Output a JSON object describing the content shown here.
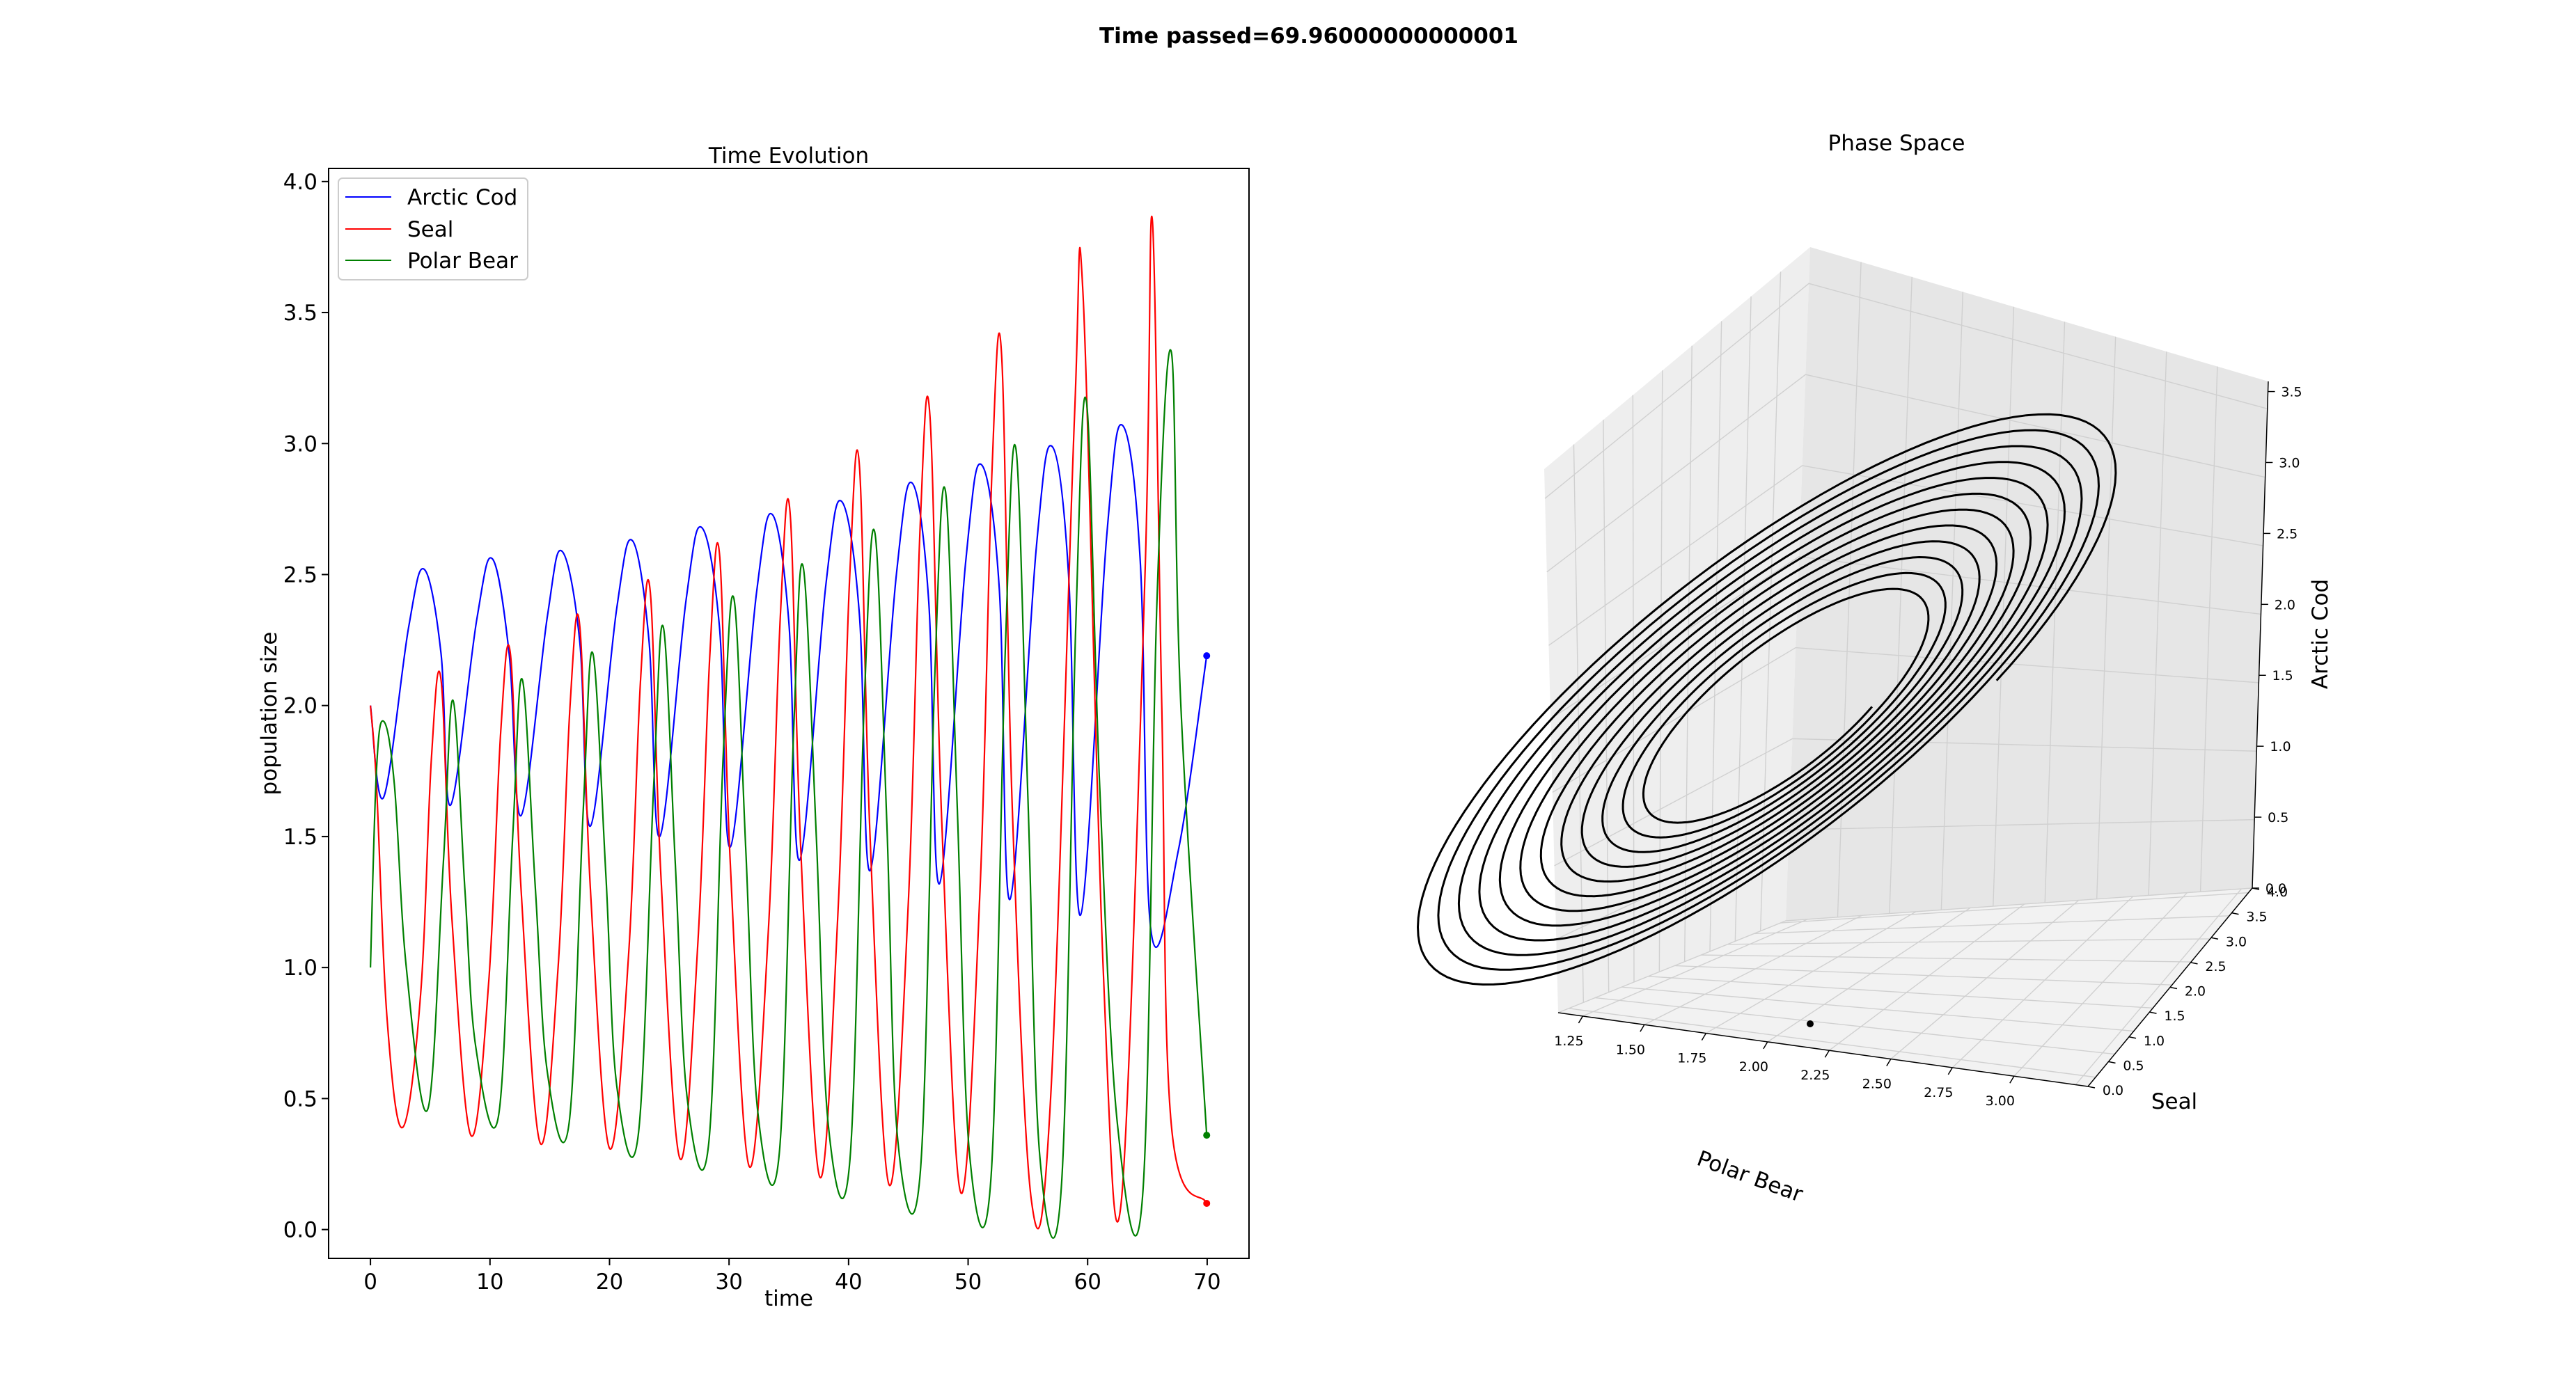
{
  "suptitle": "Time passed=69.96000000000001",
  "chart_data": [
    {
      "type": "line",
      "title": "Time Evolution",
      "xlabel": "time",
      "ylabel": "population size",
      "xlim": [
        -3.5,
        73.5
      ],
      "ylim": [
        -0.11,
        4.05
      ],
      "xticks": [
        0,
        10,
        20,
        30,
        40,
        50,
        60,
        70
      ],
      "xtick_labels": [
        "0",
        "10",
        "20",
        "30",
        "40",
        "50",
        "60",
        "70"
      ],
      "yticks": [
        0.0,
        0.5,
        1.0,
        1.5,
        2.0,
        2.5,
        3.0,
        3.5,
        4.0
      ],
      "ytick_labels": [
        "0.0",
        "0.5",
        "1.0",
        "1.5",
        "2.0",
        "2.5",
        "3.0",
        "3.5",
        "4.0"
      ],
      "grid": false,
      "legend_position": "upper-left",
      "end_markers": true,
      "series": [
        {
          "name": "Arctic Cod",
          "color": "#0000ff",
          "x": [
            0,
            1.1,
            3.2,
            4.5,
            5.9,
            6.7,
            8.9,
            10.2,
            11.6,
            12.6,
            14.8,
            16.0,
            17.5,
            18.4,
            20.6,
            21.9,
            23.3,
            24.2,
            26.4,
            27.7,
            29.2,
            30.1,
            32.3,
            33.6,
            35.0,
            35.9,
            38.1,
            39.4,
            40.9,
            41.8,
            44.0,
            45.3,
            46.7,
            47.6,
            49.8,
            51.1,
            52.6,
            53.5,
            55.7,
            57.0,
            58.4,
            59.4,
            61.6,
            62.9,
            64.4,
            65.3,
            67.6,
            69.96
          ],
          "y": [
            2.0,
            1.65,
            2.3,
            2.52,
            2.2,
            1.62,
            2.33,
            2.56,
            2.2,
            1.58,
            2.34,
            2.59,
            2.25,
            1.54,
            2.37,
            2.63,
            2.25,
            1.5,
            2.4,
            2.68,
            2.3,
            1.46,
            2.43,
            2.73,
            2.32,
            1.41,
            2.46,
            2.78,
            2.35,
            1.37,
            2.5,
            2.85,
            2.4,
            1.32,
            2.55,
            2.92,
            2.45,
            1.26,
            2.6,
            2.99,
            2.5,
            1.2,
            2.65,
            3.07,
            2.55,
            1.14,
            1.45,
            2.19
          ]
        },
        {
          "name": "Seal",
          "color": "#ff0000",
          "x": [
            0,
            0.5,
            1.4,
            2.7,
            4.2,
            5.1,
            5.9,
            6.8,
            8.4,
            9.9,
            10.9,
            11.7,
            12.6,
            14.2,
            15.7,
            16.7,
            17.5,
            18.4,
            20.0,
            21.6,
            22.6,
            23.4,
            24.3,
            25.9,
            27.4,
            28.4,
            29.2,
            30.1,
            31.7,
            33.3,
            34.3,
            35.1,
            36.0,
            37.6,
            39.1,
            40.1,
            40.9,
            41.8,
            43.4,
            45.0,
            46.0,
            46.8,
            47.8,
            49.4,
            51.0,
            52.0,
            52.8,
            53.7,
            55.3,
            56.9,
            58.9,
            59.6,
            61.3,
            62.8,
            64.8,
            65.4,
            66.2,
            67.0,
            69.96
          ],
          "y": [
            2.0,
            1.7,
            0.8,
            0.39,
            0.9,
            1.8,
            2.1,
            1.2,
            0.36,
            0.95,
            1.9,
            2.2,
            1.3,
            0.33,
            1.0,
            2.0,
            2.31,
            1.3,
            0.31,
            1.05,
            2.1,
            2.44,
            1.35,
            0.27,
            1.1,
            2.2,
            2.58,
            1.4,
            0.24,
            1.15,
            2.35,
            2.74,
            1.45,
            0.2,
            1.2,
            2.5,
            2.92,
            1.5,
            0.17,
            1.25,
            2.7,
            3.11,
            1.55,
            0.14,
            1.3,
            2.9,
            3.34,
            1.6,
            0.11,
            0.5,
            3.1,
            3.58,
            1.0,
            0.1,
            2.5,
            3.86,
            2.0,
            0.4,
            0.1
          ]
        },
        {
          "name": "Polar Bear",
          "color": "#008000",
          "x": [
            0,
            0.5,
            1.1,
            2.0,
            3.0,
            4.8,
            6.1,
            6.9,
            7.9,
            8.8,
            10.7,
            11.9,
            12.7,
            13.8,
            14.8,
            16.6,
            17.8,
            18.6,
            19.7,
            20.6,
            22.4,
            23.7,
            24.5,
            25.5,
            26.5,
            28.3,
            29.5,
            30.4,
            31.4,
            32.4,
            34.2,
            35.4,
            36.2,
            37.3,
            38.3,
            40.1,
            41.3,
            42.2,
            43.2,
            44.1,
            46.0,
            47.2,
            48.1,
            49.1,
            50.1,
            51.9,
            53.1,
            54.0,
            55.0,
            56.0,
            57.8,
            59.0,
            59.9,
            61.0,
            62.5,
            64.6,
            65.8,
            67.0,
            67.8,
            69.96
          ],
          "y": [
            1.0,
            1.75,
            1.94,
            1.7,
            1.0,
            0.46,
            1.4,
            2.02,
            1.3,
            0.7,
            0.43,
            1.5,
            2.1,
            1.3,
            0.6,
            0.4,
            1.6,
            2.2,
            1.35,
            0.55,
            0.36,
            1.7,
            2.3,
            1.4,
            0.5,
            0.33,
            1.8,
            2.41,
            1.45,
            0.45,
            0.29,
            1.9,
            2.53,
            1.5,
            0.4,
            0.26,
            2.0,
            2.66,
            1.55,
            0.35,
            0.22,
            2.1,
            2.82,
            1.6,
            0.3,
            0.19,
            2.2,
            2.98,
            1.65,
            0.28,
            0.16,
            2.3,
            3.16,
            1.7,
            0.4,
            0.13,
            2.4,
            3.35,
            2.0,
            0.36
          ]
        }
      ]
    },
    {
      "type": "line",
      "title": "Phase Space",
      "projection": "3d",
      "xlabel": "Polar Bear",
      "ylabel": "Seal",
      "zlabel": "Arctic Cod",
      "xlim": [
        1.1,
        3.1
      ],
      "ylim": [
        0.0,
        4.0
      ],
      "zlim": [
        0.0,
        3.5
      ],
      "xtick_labels": [
        "1.25",
        "1.50",
        "1.75",
        "2.00",
        "2.25",
        "2.50",
        "2.75",
        "3.00"
      ],
      "ytick_labels": [
        "0.0",
        "0.5",
        "1.0",
        "1.5",
        "2.0",
        "2.5",
        "3.0",
        "3.5",
        "4.0"
      ],
      "ztick_labels": [
        "0.0",
        "0.5",
        "1.0",
        "1.5",
        "2.0",
        "2.5",
        "3.0",
        "3.5"
      ],
      "series": [
        {
          "color": "#000000",
          "loops": 12,
          "inner_amplitude": 0.3,
          "outer_amplitude": 1.0
        }
      ]
    }
  ]
}
